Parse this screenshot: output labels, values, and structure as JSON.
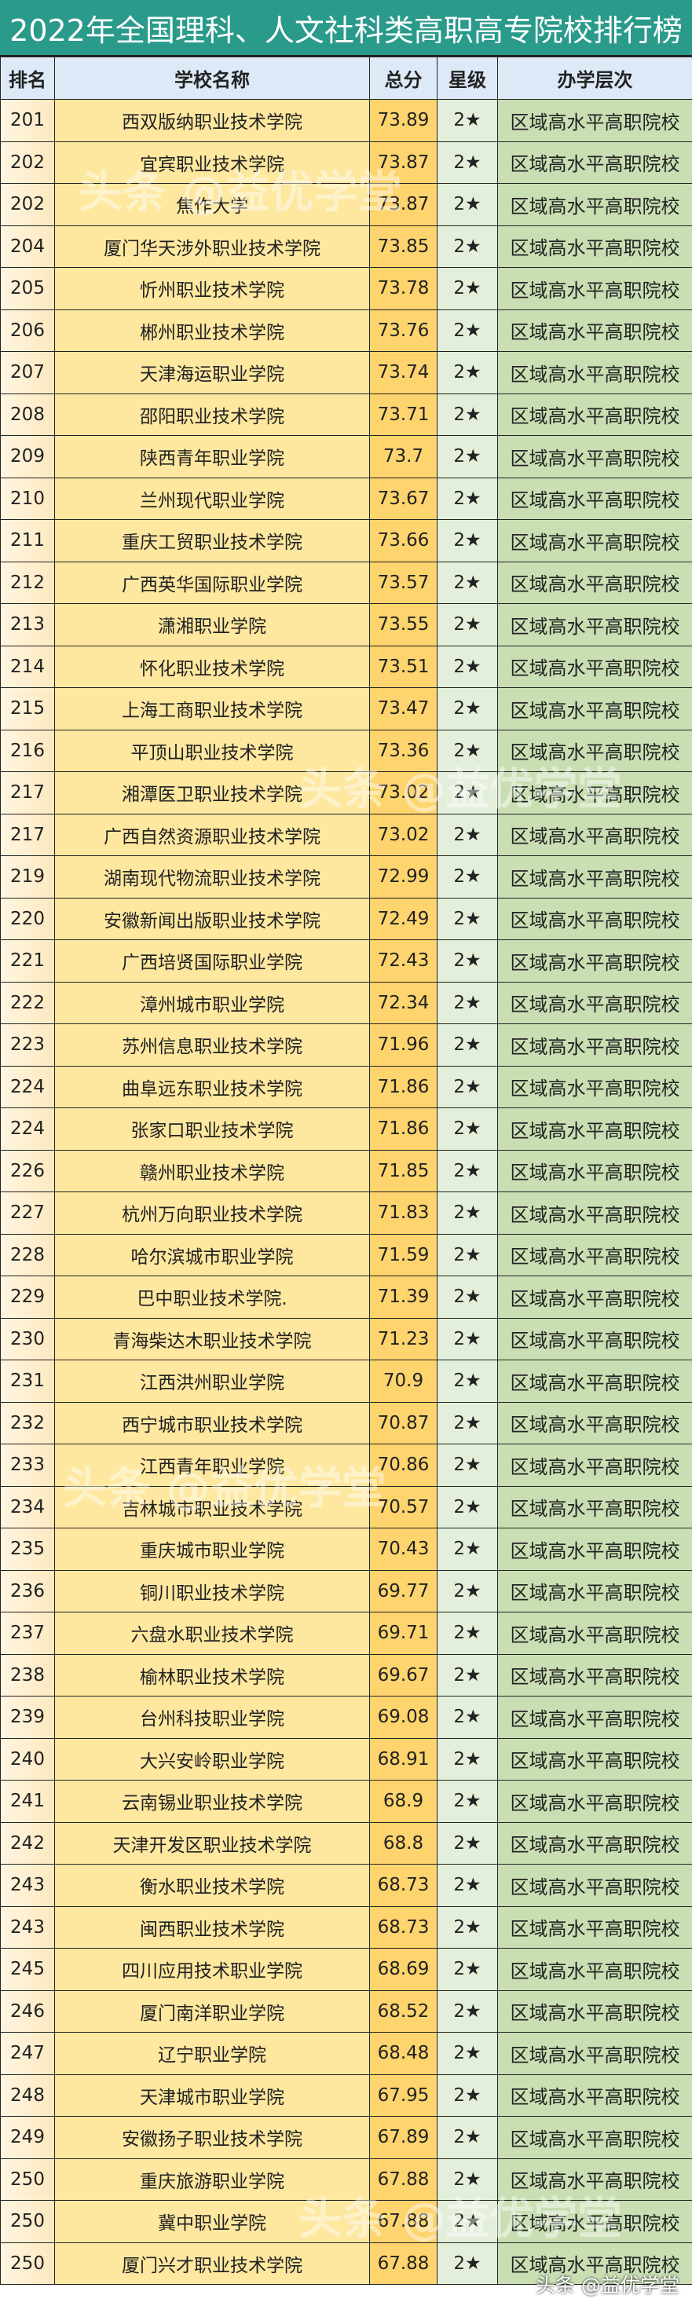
{
  "title": "2022年全国理科、人文社科类高职高专院校排行榜",
  "headers": {
    "rank": "排名",
    "name": "学校名称",
    "score": "总分",
    "star": "星级",
    "level": "办学层次"
  },
  "watermark": "头条 @益优学堂",
  "colors": {
    "title_bg": "#2a9a8b",
    "header_bg": "#dde9f6",
    "name_bg": "#fee79f",
    "score_bg": "#fdd46d",
    "star_bg": "#e3efda",
    "level_bg": "#c9dfb3"
  },
  "rows": [
    {
      "rank": "201",
      "name": "西双版纳职业技术学院",
      "score": "73.89",
      "star": "2★",
      "level": "区域高水平高职院校"
    },
    {
      "rank": "202",
      "name": "宜宾职业技术学院",
      "score": "73.87",
      "star": "2★",
      "level": "区域高水平高职院校"
    },
    {
      "rank": "202",
      "name": "焦作大学",
      "score": "73.87",
      "star": "2★",
      "level": "区域高水平高职院校"
    },
    {
      "rank": "204",
      "name": "厦门华天涉外职业技术学院",
      "score": "73.85",
      "star": "2★",
      "level": "区域高水平高职院校"
    },
    {
      "rank": "205",
      "name": "忻州职业技术学院",
      "score": "73.78",
      "star": "2★",
      "level": "区域高水平高职院校"
    },
    {
      "rank": "206",
      "name": "郴州职业技术学院",
      "score": "73.76",
      "star": "2★",
      "level": "区域高水平高职院校"
    },
    {
      "rank": "207",
      "name": "天津海运职业学院",
      "score": "73.74",
      "star": "2★",
      "level": "区域高水平高职院校"
    },
    {
      "rank": "208",
      "name": "邵阳职业技术学院",
      "score": "73.71",
      "star": "2★",
      "level": "区域高水平高职院校"
    },
    {
      "rank": "209",
      "name": "陕西青年职业学院",
      "score": "73.7",
      "star": "2★",
      "level": "区域高水平高职院校"
    },
    {
      "rank": "210",
      "name": "兰州现代职业学院",
      "score": "73.67",
      "star": "2★",
      "level": "区域高水平高职院校"
    },
    {
      "rank": "211",
      "name": "重庆工贸职业技术学院",
      "score": "73.66",
      "star": "2★",
      "level": "区域高水平高职院校"
    },
    {
      "rank": "212",
      "name": "广西英华国际职业学院",
      "score": "73.57",
      "star": "2★",
      "level": "区域高水平高职院校"
    },
    {
      "rank": "213",
      "name": "潇湘职业学院",
      "score": "73.55",
      "star": "2★",
      "level": "区域高水平高职院校"
    },
    {
      "rank": "214",
      "name": "怀化职业技术学院",
      "score": "73.51",
      "star": "2★",
      "level": "区域高水平高职院校"
    },
    {
      "rank": "215",
      "name": "上海工商职业技术学院",
      "score": "73.47",
      "star": "2★",
      "level": "区域高水平高职院校"
    },
    {
      "rank": "216",
      "name": "平顶山职业技术学院",
      "score": "73.36",
      "star": "2★",
      "level": "区域高水平高职院校"
    },
    {
      "rank": "217",
      "name": "湘潭医卫职业技术学院",
      "score": "73.02",
      "star": "2★",
      "level": "区域高水平高职院校"
    },
    {
      "rank": "217",
      "name": "广西自然资源职业技术学院",
      "score": "73.02",
      "star": "2★",
      "level": "区域高水平高职院校"
    },
    {
      "rank": "219",
      "name": "湖南现代物流职业技术学院",
      "score": "72.99",
      "star": "2★",
      "level": "区域高水平高职院校"
    },
    {
      "rank": "220",
      "name": "安徽新闻出版职业技术学院",
      "score": "72.49",
      "star": "2★",
      "level": "区域高水平高职院校"
    },
    {
      "rank": "221",
      "name": "广西培贤国际职业学院",
      "score": "72.43",
      "star": "2★",
      "level": "区域高水平高职院校"
    },
    {
      "rank": "222",
      "name": "漳州城市职业学院",
      "score": "72.34",
      "star": "2★",
      "level": "区域高水平高职院校"
    },
    {
      "rank": "223",
      "name": "苏州信息职业技术学院",
      "score": "71.96",
      "star": "2★",
      "level": "区域高水平高职院校"
    },
    {
      "rank": "224",
      "name": "曲阜远东职业技术学院",
      "score": "71.86",
      "star": "2★",
      "level": "区域高水平高职院校"
    },
    {
      "rank": "224",
      "name": "张家口职业技术学院",
      "score": "71.86",
      "star": "2★",
      "level": "区域高水平高职院校"
    },
    {
      "rank": "226",
      "name": "赣州职业技术学院",
      "score": "71.85",
      "star": "2★",
      "level": "区域高水平高职院校"
    },
    {
      "rank": "227",
      "name": "杭州万向职业技术学院",
      "score": "71.83",
      "star": "2★",
      "level": "区域高水平高职院校"
    },
    {
      "rank": "228",
      "name": "哈尔滨城市职业学院",
      "score": "71.59",
      "star": "2★",
      "level": "区域高水平高职院校"
    },
    {
      "rank": "229",
      "name": "巴中职业技术学院.",
      "score": "71.39",
      "star": "2★",
      "level": "区域高水平高职院校"
    },
    {
      "rank": "230",
      "name": "青海柴达木职业技术学院",
      "score": "71.23",
      "star": "2★",
      "level": "区域高水平高职院校"
    },
    {
      "rank": "231",
      "name": "江西洪州职业学院",
      "score": "70.9",
      "star": "2★",
      "level": "区域高水平高职院校"
    },
    {
      "rank": "232",
      "name": "西宁城市职业技术学院",
      "score": "70.87",
      "star": "2★",
      "level": "区域高水平高职院校"
    },
    {
      "rank": "233",
      "name": "江西青年职业学院",
      "score": "70.86",
      "star": "2★",
      "level": "区域高水平高职院校"
    },
    {
      "rank": "234",
      "name": "吉林城市职业技术学院",
      "score": "70.57",
      "star": "2★",
      "level": "区域高水平高职院校"
    },
    {
      "rank": "235",
      "name": "重庆城市职业学院",
      "score": "70.43",
      "star": "2★",
      "level": "区域高水平高职院校"
    },
    {
      "rank": "236",
      "name": "铜川职业技术学院",
      "score": "69.77",
      "star": "2★",
      "level": "区域高水平高职院校"
    },
    {
      "rank": "237",
      "name": "六盘水职业技术学院",
      "score": "69.71",
      "star": "2★",
      "level": "区域高水平高职院校"
    },
    {
      "rank": "238",
      "name": "榆林职业技术学院",
      "score": "69.67",
      "star": "2★",
      "level": "区域高水平高职院校"
    },
    {
      "rank": "239",
      "name": "台州科技职业学院",
      "score": "69.08",
      "star": "2★",
      "level": "区域高水平高职院校"
    },
    {
      "rank": "240",
      "name": "大兴安岭职业学院",
      "score": "68.91",
      "star": "2★",
      "level": "区域高水平高职院校"
    },
    {
      "rank": "241",
      "name": "云南锡业职业技术学院",
      "score": "68.9",
      "star": "2★",
      "level": "区域高水平高职院校"
    },
    {
      "rank": "242",
      "name": "天津开发区职业技术学院",
      "score": "68.8",
      "star": "2★",
      "level": "区域高水平高职院校"
    },
    {
      "rank": "243",
      "name": "衡水职业技术学院",
      "score": "68.73",
      "star": "2★",
      "level": "区域高水平高职院校"
    },
    {
      "rank": "243",
      "name": "闽西职业技术学院",
      "score": "68.73",
      "star": "2★",
      "level": "区域高水平高职院校"
    },
    {
      "rank": "245",
      "name": "四川应用技术职业学院",
      "score": "68.69",
      "star": "2★",
      "level": "区域高水平高职院校"
    },
    {
      "rank": "246",
      "name": "厦门南洋职业学院",
      "score": "68.52",
      "star": "2★",
      "level": "区域高水平高职院校"
    },
    {
      "rank": "247",
      "name": "辽宁职业学院",
      "score": "68.48",
      "star": "2★",
      "level": "区域高水平高职院校"
    },
    {
      "rank": "248",
      "name": "天津城市职业学院",
      "score": "67.95",
      "star": "2★",
      "level": "区域高水平高职院校"
    },
    {
      "rank": "249",
      "name": "安徽扬子职业技术学院",
      "score": "67.89",
      "star": "2★",
      "level": "区域高水平高职院校"
    },
    {
      "rank": "250",
      "name": "重庆旅游职业学院",
      "score": "67.88",
      "star": "2★",
      "level": "区域高水平高职院校"
    },
    {
      "rank": "250",
      "name": "冀中职业学院",
      "score": "67.88",
      "star": "2★",
      "level": "区域高水平高职院校"
    },
    {
      "rank": "250",
      "name": "厦门兴才职业技术学院",
      "score": "67.88",
      "star": "2★",
      "level": "区域高水平高职院校"
    }
  ]
}
